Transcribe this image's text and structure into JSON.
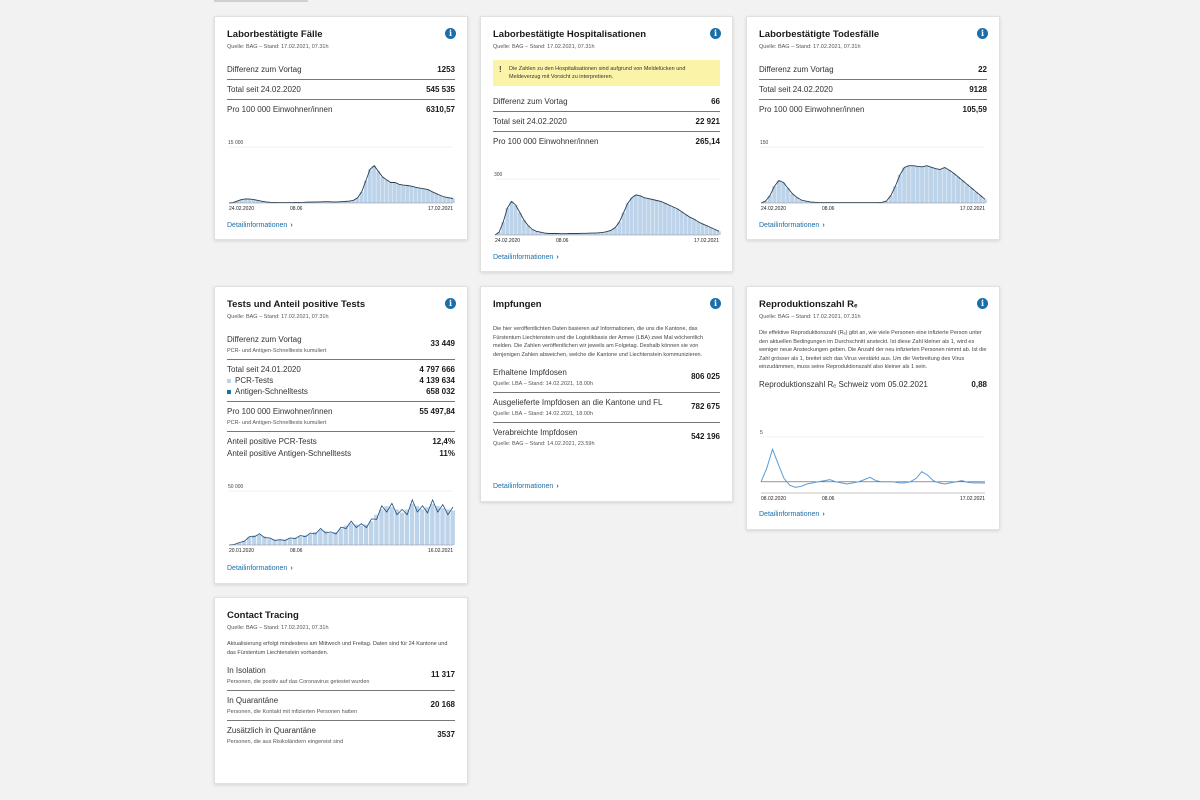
{
  "colors": {
    "accent": "#1b6ea8",
    "chart_fill": "#bcd3ea",
    "chart_line": "#2c3e50",
    "warning_bg": "#fbf3a8"
  },
  "cases": {
    "title": "Laborbestätigte Fälle",
    "source": "Quelle: BAG – Stand: 17.02.2021, 07.31h",
    "rows": [
      {
        "label": "Differenz zum Vortag",
        "value": "1253"
      },
      {
        "label": "Total seit 24.02.2020",
        "value": "545 535"
      },
      {
        "label": "Pro 100 000 Einwohner/innen",
        "value": "6310,57"
      }
    ],
    "link": "Detailinformationen"
  },
  "hosp": {
    "title": "Laborbestätigte Hospitalisationen",
    "source": "Quelle: BAG – Stand: 17.02.2021, 07.31h",
    "warning": "Die Zahlen zu den Hospitalisationen sind aufgrund von Meldelücken und Meldeverzug mit Vorsicht zu interpretieren.",
    "rows": [
      {
        "label": "Differenz zum Vortag",
        "value": "66"
      },
      {
        "label": "Total seit 24.02.2020",
        "value": "22 921"
      },
      {
        "label": "Pro 100 000 Einwohner/innen",
        "value": "265,14"
      }
    ],
    "link": "Detailinformationen"
  },
  "deaths": {
    "title": "Laborbestätigte Todesfälle",
    "source": "Quelle: BAG – Stand: 17.02.2021, 07.31h",
    "rows": [
      {
        "label": "Differenz zum Vortag",
        "value": "22"
      },
      {
        "label": "Total seit 24.02.2020",
        "value": "9128"
      },
      {
        "label": "Pro 100 000 Einwohner/innen",
        "value": "105,59"
      }
    ],
    "link": "Detailinformationen"
  },
  "tests": {
    "title": "Tests und Anteil positive Tests",
    "source": "Quelle: BAG – Stand: 17.02.2021, 07.31h",
    "diff_label": "Differenz zum Vortag",
    "diff_sub": "PCR- und Antigen-Schnelltests kumuliert",
    "diff_value": "33 449",
    "total_label": "Total seit 24.01.2020",
    "total_value": "4 797 666",
    "pcr_label": "PCR-Tests",
    "pcr_value": "4 139 634",
    "antigen_label": "Antigen-Schnelltests",
    "antigen_value": "658 032",
    "per100k_label": "Pro 100 000 Einwohner/innen",
    "per100k_sub": "PCR- und Antigen-Schnelltests kumuliert",
    "per100k_value": "55 497,84",
    "pos_pcr_label": "Anteil positive PCR-Tests",
    "pos_pcr_value": "12,4%",
    "pos_ag_label": "Anteil positive Antigen-Schnelltests",
    "pos_ag_value": "11%",
    "link": "Detailinformationen"
  },
  "vacc": {
    "title": "Impfungen",
    "intro": "Die hier veröffentlichten Daten basieren auf Informationen, die uns die Kantone, das Fürstentum Liechtenstein und die Logistikbasis der Armee (LBA) zwei Mal wöchentlich melden. Die Zahlen veröffentlichen wir jeweils am Folgetag. Deshalb können sie von denjenigen Zahlen abweichen, welche die Kantone und Liechtenstein kommunizieren.",
    "rows": [
      {
        "label": "Erhaltene Impfdosen",
        "sub": "Quelle: LBA – Stand: 14.02.2021, 18.00h",
        "value": "806 025"
      },
      {
        "label": "Ausgelieferte Impfdosen an die Kantone und FL",
        "sub": "Quelle: LBA – Stand: 14.02.2021, 18.00h",
        "value": "782 675"
      },
      {
        "label": "Verabreichte Impfdosen",
        "sub": "Quelle: BAG – Stand: 14.02.2021, 23.59h",
        "value": "542 196"
      }
    ],
    "link": "Detailinformationen"
  },
  "repro": {
    "title": "Reproduktionszahl Rₑ",
    "source": "Quelle: BAG – Stand: 17.02.2021, 07.31h",
    "intro": "Die effektive Reproduktionszahl (Rₑ) gibt an, wie viele Personen eine infizierte Person unter den aktuellen Bedingungen im Durchschnitt ansteckt. Ist diese Zahl kleiner als 1, wird es weniger neue Ansteckungen geben. Die Anzahl der neu infizierten Personen nimmt ab. Ist die Zahl grösser als 1, breitet sich das Virus verstärkt aus. Um die Verbreitung des Virus einzudämmen, muss seine Reproduktionszahl also kleiner als 1 sein.",
    "value_label": "Reproduktionszahl Rₑ Schweiz vom 05.02.2021",
    "value": "0,88",
    "link": "Detailinformationen"
  },
  "contact": {
    "title": "Contact Tracing",
    "source": "Quelle: BAG – Stand: 17.02.2021, 07.31h",
    "intro": "Aktualisierung erfolgt mindestens am Mittwoch und Freitag. Daten sind für 24 Kantone und das Fürstentum Liechtenstein vorhanden.",
    "rows": [
      {
        "label": "In Isolation",
        "sub": "Personen, die positiv auf das Coronavirus getestet wurden",
        "value": "11 317"
      },
      {
        "label": "In Quarantäne",
        "sub": "Personen, die Kontakt mit infizierten Personen hatten",
        "value": "20 168"
      },
      {
        "label": "Zusätzlich in Quarantäne",
        "sub": "Personen, die aus Risikoländern eingereist sind",
        "value": "3537"
      }
    ]
  },
  "chart_data": [
    {
      "type": "area",
      "id": "cases",
      "ylim": [
        0,
        15000
      ],
      "yticks": [
        "15 000"
      ],
      "xticks": [
        "24.02.2020",
        "08.06",
        "17.02.2021"
      ],
      "x_range": [
        "24.02.2020",
        "17.02.2021"
      ],
      "values": [
        0,
        120,
        500,
        900,
        1100,
        1050,
        900,
        700,
        450,
        300,
        200,
        150,
        120,
        100,
        100,
        110,
        130,
        150,
        200,
        250,
        250,
        300,
        300,
        350,
        350,
        300,
        300,
        350,
        400,
        500,
        700,
        1400,
        3000,
        6000,
        9000,
        10000,
        8500,
        7000,
        6200,
        5500,
        5500,
        5000,
        4800,
        4700,
        4500,
        4200,
        4000,
        3800,
        3600,
        3000,
        2500,
        2000,
        1600,
        1400,
        1200
      ]
    },
    {
      "type": "area",
      "id": "hosp",
      "ylim": [
        0,
        300
      ],
      "yticks": [
        "300"
      ],
      "xticks": [
        "24.02.2020",
        "08.06",
        "17.02.2021"
      ],
      "x_range": [
        "24.02.2020",
        "17.02.2021"
      ],
      "values": [
        0,
        15,
        70,
        145,
        180,
        160,
        120,
        80,
        50,
        30,
        20,
        15,
        10,
        8,
        8,
        8,
        7,
        7,
        8,
        8,
        8,
        9,
        9,
        10,
        10,
        12,
        14,
        18,
        25,
        40,
        70,
        120,
        170,
        200,
        215,
        210,
        200,
        195,
        190,
        185,
        180,
        170,
        160,
        150,
        140,
        125,
        110,
        95,
        85,
        70,
        60,
        50,
        40,
        30,
        20
      ]
    },
    {
      "type": "area",
      "id": "deaths",
      "ylim": [
        0,
        150
      ],
      "yticks": [
        "150"
      ],
      "xticks": [
        "24.02.2020",
        "08.06",
        "17.02.2021"
      ],
      "x_range": [
        "24.02.2020",
        "17.02.2021"
      ],
      "values": [
        0,
        5,
        20,
        45,
        60,
        55,
        40,
        25,
        15,
        8,
        5,
        3,
        2,
        1,
        1,
        1,
        1,
        1,
        1,
        1,
        1,
        1,
        1,
        1,
        1,
        1,
        1,
        2,
        5,
        20,
        45,
        75,
        95,
        100,
        100,
        98,
        97,
        100,
        96,
        92,
        90,
        95,
        88,
        80,
        70,
        60,
        50,
        40,
        30,
        20,
        10
      ]
    },
    {
      "type": "bar+line",
      "id": "tests",
      "ylim": [
        0,
        50000
      ],
      "yticks": [
        "50 000"
      ],
      "xticks": [
        "20.01.2020",
        "08.06",
        "16.02.2021"
      ],
      "x_range": [
        "20.01.2020",
        "16.02.2021"
      ],
      "values": [
        0,
        500,
        2000,
        4000,
        7000,
        9000,
        9500,
        8000,
        6000,
        5000,
        4500,
        5000,
        6000,
        7000,
        8000,
        9000,
        10000,
        12000,
        14000,
        13000,
        11000,
        12000,
        15000,
        18000,
        20000,
        19000,
        18000,
        19000,
        22000,
        28000,
        33000,
        36000,
        35000,
        33000,
        30000,
        33000,
        38000,
        36000,
        33000,
        35000,
        38000,
        36000,
        34000,
        33000,
        32000
      ]
    },
    {
      "type": "line",
      "id": "repro",
      "ylim": [
        0,
        5
      ],
      "yticks": [
        "5"
      ],
      "xticks": [
        "08.02.2020",
        "08.06",
        "17.02.2021"
      ],
      "x_range": [
        "08.02.2020",
        "17.02.2021"
      ],
      "values": [
        1.0,
        2.2,
        3.9,
        2.6,
        1.3,
        0.7,
        0.5,
        0.6,
        0.8,
        0.9,
        1.0,
        1.1,
        1.2,
        1.0,
        0.9,
        0.8,
        0.9,
        1.0,
        1.2,
        1.4,
        1.1,
        1.0,
        1.0,
        1.0,
        0.9,
        0.9,
        1.0,
        1.3,
        1.9,
        1.6,
        1.1,
        0.9,
        0.8,
        0.9,
        1.0,
        1.1,
        0.95,
        0.9,
        0.9,
        0.88
      ]
    }
  ]
}
